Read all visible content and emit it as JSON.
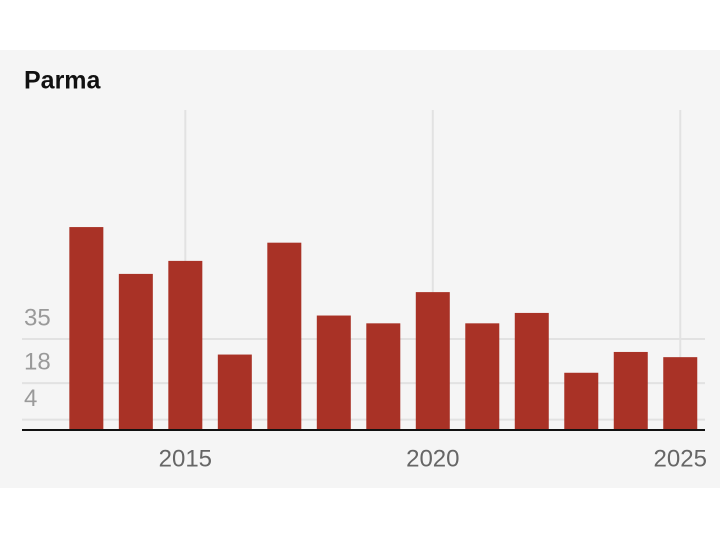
{
  "chart_data": {
    "type": "bar",
    "title": "Parma",
    "x": [
      2013,
      2014,
      2015,
      2016,
      2017,
      2018,
      2019,
      2020,
      2021,
      2022,
      2023,
      2024,
      2025
    ],
    "values": [
      78,
      60,
      65,
      29,
      72,
      44,
      41,
      53,
      41,
      45,
      22,
      30,
      28
    ],
    "color": "#a93226",
    "xlim": [
      2011.7,
      2025.5
    ],
    "xticks": [
      2015,
      2020,
      2025
    ],
    "ylim": [
      0,
      123
    ],
    "yticks": [
      4,
      18,
      35
    ],
    "grid": true
  }
}
